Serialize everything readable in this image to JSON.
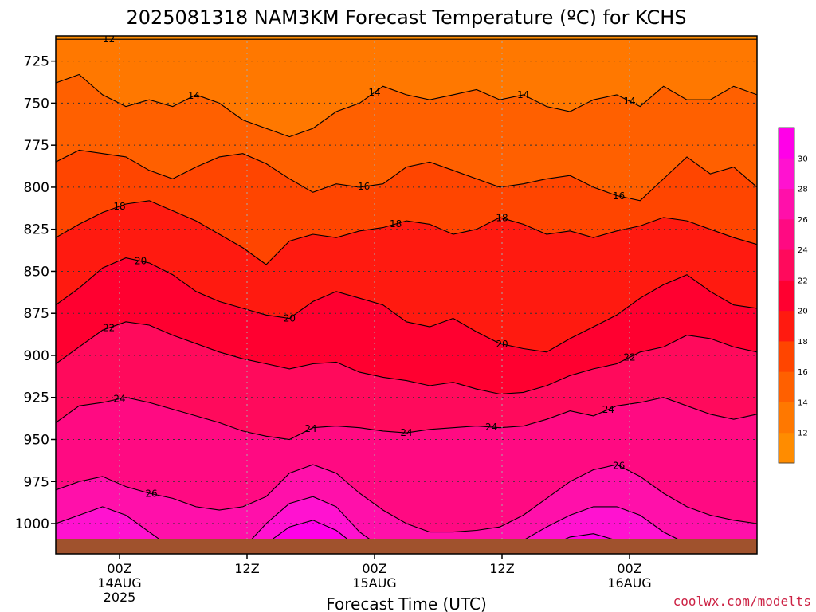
{
  "title": "2025081318 NAM3KM Forecast Temperature (ºC) for KCHS",
  "xlabel": "Forecast Time (UTC)",
  "credit": "coolwx.com/modelts",
  "chart_data": {
    "type": "heatmap",
    "title": "2025081318 NAM3KM Forecast Temperature (ºC) for KCHS",
    "xlabel": "Forecast Time (UTC)",
    "ylabel": "",
    "y_reversed": true,
    "ylim": [
      1018,
      710
    ],
    "yticks": [
      725,
      750,
      775,
      800,
      825,
      850,
      875,
      900,
      925,
      950,
      975,
      1000
    ],
    "ytick_labels": [
      "725",
      "750",
      "775",
      "800",
      "825",
      "850",
      "875",
      "900",
      "925",
      "950",
      "975",
      "1000"
    ],
    "xlim": [
      "2025-08-13 18Z",
      "2025-08-16 12Z"
    ],
    "xticks": [
      {
        "time": "2025-08-14 00Z",
        "lines": [
          "00Z",
          "14AUG",
          "2025"
        ]
      },
      {
        "time": "2025-08-14 12Z",
        "lines": [
          "12Z"
        ]
      },
      {
        "time": "2025-08-15 00Z",
        "lines": [
          "00Z",
          "15AUG"
        ]
      },
      {
        "time": "2025-08-15 12Z",
        "lines": [
          "12Z"
        ]
      },
      {
        "time": "2025-08-16 00Z",
        "lines": [
          "00Z",
          "16AUG"
        ]
      }
    ],
    "grid": true,
    "colorbar": {
      "levels": [
        12,
        14,
        16,
        18,
        20,
        22,
        24,
        26,
        28,
        30
      ],
      "colors": [
        "#ff8c00",
        "#ff7800",
        "#ff6000",
        "#ff4500",
        "#ff1a10",
        "#ff0030",
        "#ff0a5c",
        "#ff0a82",
        "#ff10aa",
        "#ff12d0",
        "#ff00e8"
      ]
    },
    "isotherms": [
      {
        "value": 12,
        "pressure": [
          712,
          712,
          712,
          712,
          712,
          712,
          712,
          712,
          712,
          712,
          712,
          712,
          712,
          712,
          712,
          712,
          712,
          712,
          712,
          712,
          712,
          712,
          712,
          712,
          712,
          712,
          712,
          712,
          712,
          712,
          712
        ],
        "labels": [
          {
            "time": "2025-08-13 23Z",
            "text": "12"
          }
        ]
      },
      {
        "value": 14,
        "pressure": [
          738,
          733,
          745,
          752,
          748,
          752,
          745,
          750,
          760,
          765,
          770,
          765,
          755,
          750,
          740,
          745,
          748,
          745,
          742,
          748,
          745,
          752,
          755,
          748,
          745,
          752,
          740,
          748,
          748,
          740,
          745
        ],
        "labels": [
          {
            "time": "2025-08-14 07Z",
            "text": "14"
          },
          {
            "time": "2025-08-15 00Z",
            "text": "14"
          },
          {
            "time": "2025-08-15 14Z",
            "text": "14"
          },
          {
            "time": "2025-08-16 00Z",
            "text": "14"
          }
        ]
      },
      {
        "value": 16,
        "pressure": [
          785,
          778,
          780,
          782,
          790,
          795,
          788,
          782,
          780,
          786,
          795,
          803,
          798,
          800,
          798,
          788,
          785,
          790,
          795,
          800,
          798,
          795,
          793,
          800,
          805,
          808,
          795,
          782,
          792,
          788,
          800
        ],
        "labels": [
          {
            "time": "2025-08-14 23Z",
            "text": "16"
          },
          {
            "time": "2025-08-15 23Z",
            "text": "16"
          }
        ]
      },
      {
        "value": 18,
        "pressure": [
          830,
          822,
          815,
          810,
          808,
          814,
          820,
          828,
          836,
          846,
          832,
          828,
          830,
          826,
          824,
          820,
          822,
          828,
          825,
          818,
          822,
          828,
          826,
          830,
          826,
          823,
          818,
          820,
          825,
          830,
          834
        ],
        "labels": [
          {
            "time": "2025-08-13 24Z",
            "text": "18"
          },
          {
            "time": "2025-08-15 02Z",
            "text": "18"
          },
          {
            "time": "2025-08-15 12Z",
            "text": "18"
          }
        ]
      },
      {
        "value": 20,
        "pressure": [
          870,
          860,
          848,
          842,
          845,
          852,
          862,
          868,
          872,
          876,
          878,
          868,
          862,
          866,
          870,
          880,
          883,
          878,
          886,
          893,
          896,
          898,
          890,
          883,
          876,
          866,
          858,
          852,
          862,
          870,
          872
        ],
        "labels": [
          {
            "time": "2025-08-14 02Z",
            "text": "20"
          },
          {
            "time": "2025-08-14 16Z",
            "text": "20"
          },
          {
            "time": "2025-08-15 12Z",
            "text": "20"
          }
        ]
      },
      {
        "value": 22,
        "pressure": [
          905,
          895,
          885,
          880,
          882,
          888,
          893,
          898,
          902,
          905,
          908,
          905,
          904,
          910,
          913,
          915,
          918,
          916,
          920,
          923,
          922,
          918,
          912,
          908,
          905,
          898,
          895,
          888,
          890,
          895,
          898
        ],
        "labels": [
          {
            "time": "2025-08-13 23Z",
            "text": "22"
          },
          {
            "time": "2025-08-16 00Z",
            "text": "22"
          }
        ]
      },
      {
        "value": 24,
        "pressure": [
          940,
          930,
          928,
          925,
          928,
          932,
          936,
          940,
          945,
          948,
          950,
          943,
          942,
          943,
          945,
          946,
          944,
          943,
          942,
          943,
          942,
          938,
          933,
          936,
          930,
          928,
          925,
          930,
          935,
          938,
          935
        ],
        "labels": [
          {
            "time": "2025-08-13 24Z",
            "text": "24"
          },
          {
            "time": "2025-08-14 18Z",
            "text": "24"
          },
          {
            "time": "2025-08-15 03Z",
            "text": "24"
          },
          {
            "time": "2025-08-15 11Z",
            "text": "24"
          },
          {
            "time": "2025-08-15 22Z",
            "text": "24"
          }
        ]
      },
      {
        "value": 26,
        "pressure": [
          980,
          975,
          972,
          978,
          982,
          985,
          990,
          992,
          990,
          984,
          970,
          965,
          970,
          982,
          992,
          1000,
          1005,
          1005,
          1004,
          1002,
          995,
          985,
          975,
          968,
          965,
          972,
          982,
          990,
          995,
          998,
          1000
        ],
        "labels": [
          {
            "time": "2025-08-14 03Z",
            "text": "26"
          },
          {
            "time": "2025-08-15 23Z",
            "text": "26"
          }
        ]
      },
      {
        "value": 28,
        "pressure": [
          1000,
          995,
          990,
          995,
          1005,
          1015,
          1018,
          1018,
          1015,
          1000,
          988,
          984,
          990,
          1005,
          1015,
          1018,
          1018,
          1018,
          1018,
          1015,
          1010,
          1002,
          995,
          990,
          990,
          995,
          1005,
          1012,
          1015,
          1018,
          1018
        ],
        "labels": []
      },
      {
        "value": 30,
        "pressure": [
          1018,
          1018,
          1018,
          1018,
          1018,
          1018,
          1018,
          1018,
          1018,
          1012,
          1002,
          998,
          1004,
          1015,
          1018,
          1018,
          1018,
          1018,
          1018,
          1018,
          1018,
          1014,
          1008,
          1006,
          1010,
          1016,
          1018,
          1018,
          1018,
          1018,
          1018
        ],
        "labels": []
      }
    ]
  }
}
